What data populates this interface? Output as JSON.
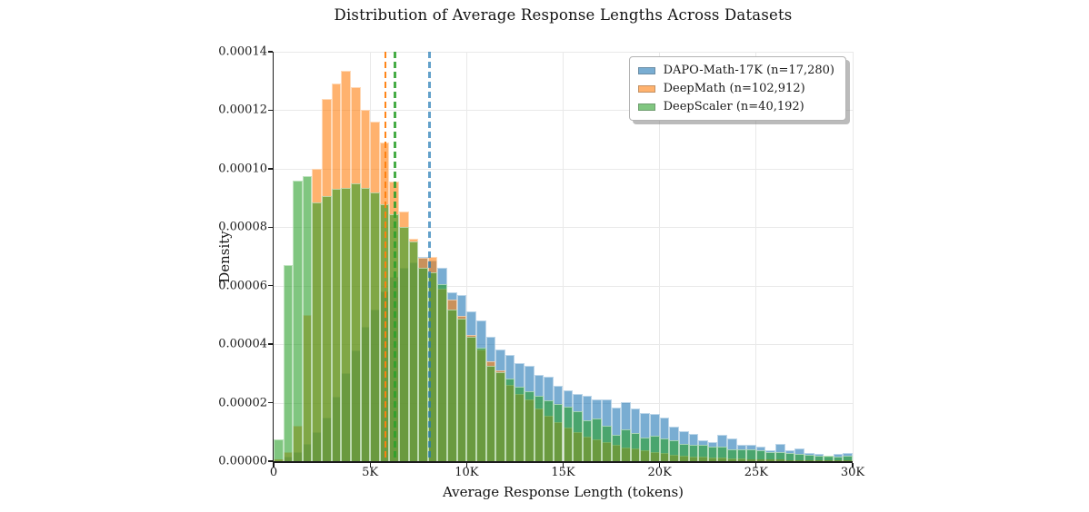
{
  "figure": {
    "title": "Distribution of Average Response Lengths Across Datasets",
    "xlabel": "Average Response Length (tokens)",
    "ylabel": "Density"
  },
  "colors": {
    "background": "#ffffff",
    "axis": "#1c1c1c",
    "grid": "#e9e9e9",
    "text": "#1a1a1a"
  },
  "chart_data": {
    "type": "histogram",
    "mode": "overlaid-density",
    "grid": true,
    "legend_position": "upper-right",
    "bin_width_tokens": 500,
    "num_bins": 60,
    "xlim_tokens": [
      0,
      30000
    ],
    "ylim_density": [
      0,
      0.00014
    ],
    "x_ticks": [
      {
        "value": 0,
        "label": "0"
      },
      {
        "value": 5000,
        "label": "5K"
      },
      {
        "value": 10000,
        "label": "10K"
      },
      {
        "value": 15000,
        "label": "15K"
      },
      {
        "value": 20000,
        "label": "20K"
      },
      {
        "value": 25000,
        "label": "25K"
      },
      {
        "value": 30000,
        "label": "30K"
      }
    ],
    "y_ticks": [
      {
        "value_e5": 0,
        "label": "0.00000"
      },
      {
        "value_e5": 2,
        "label": "0.00002"
      },
      {
        "value_e5": 4,
        "label": "0.00004"
      },
      {
        "value_e5": 6,
        "label": "0.00006"
      },
      {
        "value_e5": 8,
        "label": "0.00008"
      },
      {
        "value_e5": 10,
        "label": "0.00010"
      },
      {
        "value_e5": 12,
        "label": "0.00012"
      },
      {
        "value_e5": 14,
        "label": "0.00014"
      }
    ],
    "series": [
      {
        "name": "DAPO-Math-17K (n=17,280)",
        "slug": "dapo-math-17k",
        "color": "#1f77b4",
        "rgb": [
          31,
          119,
          180
        ],
        "fill_alpha": 0.6,
        "mean_line_tokens": 8090,
        "mean_dash_alpha": 0.7,
        "densities_e5": [
          0,
          0.15,
          0.3,
          0.6,
          1.0,
          1.5,
          2.2,
          3.0,
          3.8,
          4.6,
          5.2,
          5.8,
          6.3,
          6.6,
          6.8,
          7.0,
          6.85,
          6.6,
          5.76,
          5.69,
          5.12,
          4.81,
          4.24,
          3.83,
          3.62,
          3.36,
          3.26,
          2.95,
          2.89,
          2.58,
          2.43,
          2.3,
          2.25,
          2.12,
          2.12,
          1.84,
          2.01,
          1.8,
          1.65,
          1.62,
          1.49,
          1.17,
          1.03,
          0.92,
          0.72,
          0.64,
          0.9,
          0.77,
          0.56,
          0.55,
          0.49,
          0.37,
          0.59,
          0.36,
          0.44,
          0.27,
          0.25,
          0.15,
          0.25,
          0.27
        ]
      },
      {
        "name": "DeepMath (n=102,912)",
        "slug": "deepmath",
        "color": "#ff7f0e",
        "rgb": [
          255,
          127,
          14
        ],
        "fill_alpha": 0.6,
        "mean_line_tokens": 5790,
        "mean_dash_alpha": 0.95,
        "densities_e5": [
          0.05,
          0.3,
          1.2,
          5.0,
          10.0,
          12.4,
          12.9,
          13.35,
          12.8,
          12.0,
          11.6,
          10.9,
          9.55,
          8.55,
          7.6,
          6.95,
          7.0,
          5.9,
          5.54,
          4.98,
          4.31,
          3.83,
          3.41,
          3.1,
          2.6,
          2.3,
          2.1,
          1.8,
          1.55,
          1.35,
          1.15,
          1.0,
          0.85,
          0.75,
          0.65,
          0.55,
          0.48,
          0.42,
          0.36,
          0.31,
          0.27,
          0.23,
          0.2,
          0.17,
          0.15,
          0.13,
          0.11,
          0.1,
          0.08,
          0.07,
          0.06,
          0.05,
          0.05,
          0.04,
          0.04,
          0.03,
          0.03,
          0.02,
          0.02,
          0.02
        ]
      },
      {
        "name": "DeepScaler (n=40,192)",
        "slug": "deepscaler",
        "color": "#2ca02c",
        "rgb": [
          44,
          160,
          44
        ],
        "fill_alpha": 0.6,
        "mean_line_tokens": 6280,
        "mean_dash_alpha": 0.88,
        "densities_e5": [
          0.74,
          6.7,
          9.6,
          9.75,
          8.85,
          9.05,
          9.3,
          9.35,
          9.5,
          9.35,
          9.2,
          8.8,
          8.44,
          8.0,
          7.5,
          6.6,
          6.47,
          6.05,
          5.2,
          4.86,
          4.24,
          3.88,
          3.26,
          3.05,
          2.84,
          2.55,
          2.4,
          2.25,
          2.08,
          1.95,
          1.85,
          1.72,
          1.4,
          1.45,
          1.2,
          0.9,
          1.1,
          0.97,
          0.8,
          0.87,
          0.78,
          0.7,
          0.6,
          0.56,
          0.55,
          0.51,
          0.49,
          0.4,
          0.4,
          0.39,
          0.36,
          0.3,
          0.3,
          0.27,
          0.25,
          0.23,
          0.2,
          0.18,
          0.15,
          0.18
        ]
      }
    ]
  }
}
